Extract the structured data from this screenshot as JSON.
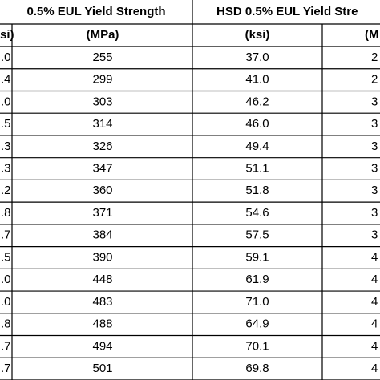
{
  "table": {
    "header": [
      "0.5% EUL Yield Strength",
      "HSD 0.5% EUL Yield Stre"
    ],
    "subheader": [
      "si)",
      "(MPa)",
      "(ksi)",
      "(M"
    ],
    "rows": [
      [
        ".0",
        "255",
        "37.0",
        "2"
      ],
      [
        ".4",
        "299",
        "41.0",
        "2"
      ],
      [
        ".0",
        "303",
        "46.2",
        "3"
      ],
      [
        ".5",
        "314",
        "46.0",
        "3"
      ],
      [
        ".3",
        "326",
        "49.4",
        "3"
      ],
      [
        ".3",
        "347",
        "51.1",
        "3"
      ],
      [
        ".2",
        "360",
        "51.8",
        "3"
      ],
      [
        ".8",
        "371",
        "54.6",
        "3"
      ],
      [
        ".7",
        "384",
        "57.5",
        "3"
      ],
      [
        ".5",
        "390",
        "59.1",
        "4"
      ],
      [
        ".0",
        "448",
        "61.9",
        "4"
      ],
      [
        ".0",
        "483",
        "71.0",
        "4"
      ],
      [
        ".8",
        "488",
        "64.9",
        "4"
      ],
      [
        ".7",
        "494",
        "70.1",
        "4"
      ],
      [
        ".7",
        "501",
        "69.8",
        "4"
      ]
    ]
  }
}
